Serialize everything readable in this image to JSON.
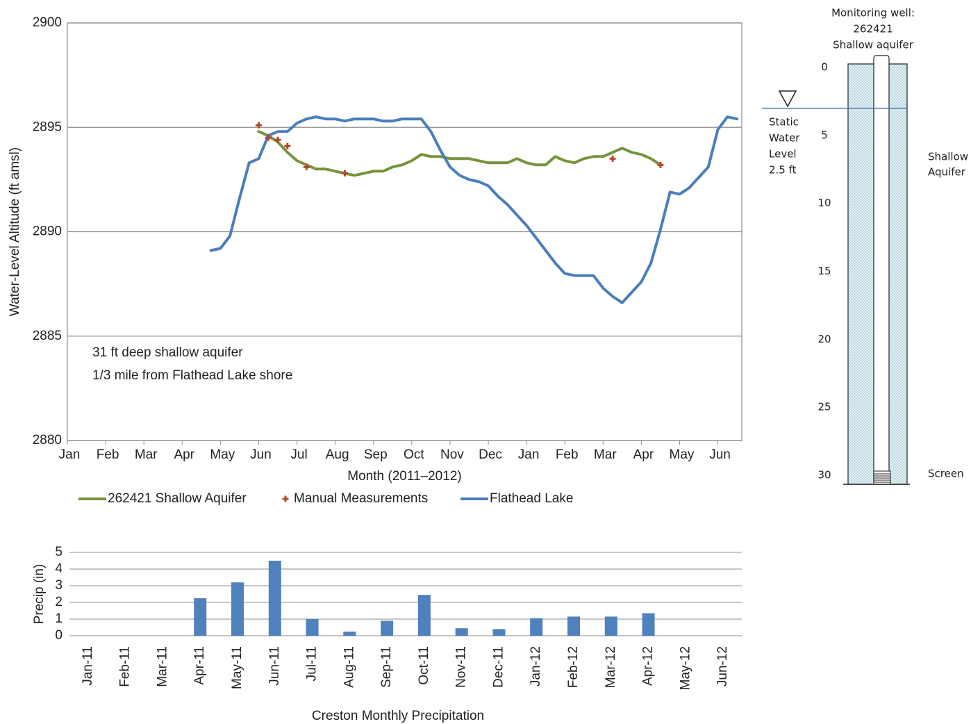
{
  "chart_data": [
    {
      "type": "line",
      "y_label": "Water-Level Altitude (ft amsl)",
      "x_label": "Month (2011–2012)",
      "annotations": [
        "31 ft deep shallow aquifer",
        "1/3 mile from Flathead Lake shore"
      ],
      "categories": [
        "Jan",
        null,
        null,
        null,
        "Feb",
        null,
        null,
        null,
        "Mar",
        null,
        null,
        null,
        "Apr",
        null,
        null,
        null,
        "May",
        null,
        null,
        null,
        "Jun",
        null,
        null,
        null,
        "Jul",
        null,
        null,
        null,
        "Aug",
        null,
        null,
        null,
        "Sep",
        null,
        null,
        null,
        "Oct",
        null,
        null,
        null,
        "Nov",
        null,
        null,
        null,
        "Dec",
        null,
        null,
        null,
        "Jan",
        null,
        null,
        null,
        "Feb",
        null,
        null,
        null,
        "Mar",
        null,
        null,
        null,
        "Apr",
        null,
        null,
        null,
        "May",
        null,
        null,
        null,
        "Jun",
        null,
        null
      ],
      "ylim": [
        2880,
        2900
      ],
      "yticks": [
        2880,
        2885,
        2890,
        2895,
        2900
      ],
      "grid": true,
      "series": [
        {
          "name": "262421 Shallow Aquifer",
          "color": "#77933c",
          "style": "line",
          "values": [
            null,
            null,
            null,
            null,
            null,
            null,
            null,
            null,
            null,
            null,
            null,
            null,
            null,
            null,
            null,
            null,
            null,
            null,
            null,
            null,
            2894.8,
            2894.6,
            2894.3,
            2893.8,
            2893.4,
            2893.2,
            2893.0,
            2893.0,
            2892.9,
            2892.8,
            2892.7,
            2892.8,
            2892.9,
            2892.9,
            2893.1,
            2893.2,
            2893.4,
            2893.7,
            2893.6,
            2893.6,
            2893.5,
            2893.5,
            2893.5,
            2893.4,
            2893.3,
            2893.3,
            2893.3,
            2893.5,
            2893.3,
            2893.2,
            2893.2,
            2893.6,
            2893.4,
            2893.3,
            2893.5,
            2893.6,
            2893.6,
            2893.8,
            2894.0,
            2893.8,
            2893.7,
            2893.5,
            2893.2,
            null,
            null,
            null,
            null,
            null,
            null,
            null,
            null
          ]
        },
        {
          "name": "Manual Measurements",
          "color": "#b5472b",
          "style": "markers",
          "values": [
            null,
            null,
            null,
            null,
            null,
            null,
            null,
            null,
            null,
            null,
            null,
            null,
            null,
            null,
            null,
            null,
            null,
            null,
            null,
            null,
            2895.1,
            2894.5,
            2894.4,
            2894.1,
            null,
            2893.1,
            null,
            null,
            null,
            2892.8,
            null,
            null,
            null,
            null,
            null,
            null,
            null,
            null,
            null,
            null,
            null,
            null,
            null,
            null,
            null,
            null,
            null,
            null,
            null,
            null,
            null,
            null,
            null,
            null,
            null,
            null,
            null,
            2893.5,
            null,
            null,
            null,
            null,
            2893.2,
            null,
            null,
            null,
            null,
            null,
            null,
            null,
            null
          ]
        },
        {
          "name": "Flathead Lake",
          "color": "#4a7ebb",
          "style": "line",
          "values": [
            null,
            null,
            null,
            null,
            null,
            null,
            null,
            null,
            null,
            null,
            null,
            null,
            null,
            null,
            null,
            2889.1,
            2889.2,
            2889.8,
            2891.6,
            2893.3,
            2893.5,
            2894.6,
            2894.8,
            2894.8,
            2895.2,
            2895.4,
            2895.5,
            2895.4,
            2895.4,
            2895.3,
            2895.4,
            2895.4,
            2895.4,
            2895.3,
            2895.3,
            2895.4,
            2895.4,
            2895.4,
            2894.8,
            2893.9,
            2893.1,
            2892.7,
            2892.5,
            2892.4,
            2892.2,
            2891.7,
            2891.3,
            2890.8,
            2890.3,
            2889.7,
            2889.1,
            2888.5,
            2888.0,
            2887.9,
            2887.9,
            2887.9,
            2887.3,
            2886.9,
            2886.6,
            2887.1,
            2887.6,
            2888.5,
            2890.1,
            2891.9,
            2891.8,
            2892.1,
            2892.6,
            2893.1,
            2894.9,
            2895.5,
            2895.4
          ]
        }
      ]
    },
    {
      "type": "bar",
      "title": "Creston Monthly Precipitation",
      "y_label": "Precip (in)",
      "categories": [
        "Jan-11",
        "Feb-11",
        "Mar-11",
        "Apr-11",
        "May-11",
        "Jun-11",
        "Jul-11",
        "Aug-11",
        "Sep-11",
        "Oct-11",
        "Nov-11",
        "Dec-11",
        "Jan-12",
        "Feb-12",
        "Mar-12",
        "Apr-12",
        "May-12",
        "Jun-12"
      ],
      "values": [
        null,
        null,
        null,
        2.25,
        3.2,
        4.5,
        1.0,
        0.25,
        0.9,
        2.45,
        0.45,
        0.4,
        1.05,
        1.15,
        1.15,
        1.35,
        null,
        null
      ],
      "color": "#4f81bd",
      "ylim": [
        0,
        5
      ],
      "yticks": [
        0,
        1,
        2,
        3,
        4,
        5
      ],
      "grid": true
    }
  ],
  "well_diagram": {
    "title_lines": [
      "Monitoring well:",
      "262421",
      "Shallow aquifer"
    ],
    "depth_lim": [
      0,
      30
    ],
    "depth_ticks": [
      0,
      5,
      10,
      15,
      20,
      25,
      30
    ],
    "static_water_level": {
      "value": 2.5,
      "label": "2.5 ft"
    },
    "static_label_lines": [
      "Static",
      "Water",
      "Level"
    ],
    "zone_label_lines": [
      "Shallow",
      "Aquifer"
    ],
    "screen_label": "Screen"
  }
}
